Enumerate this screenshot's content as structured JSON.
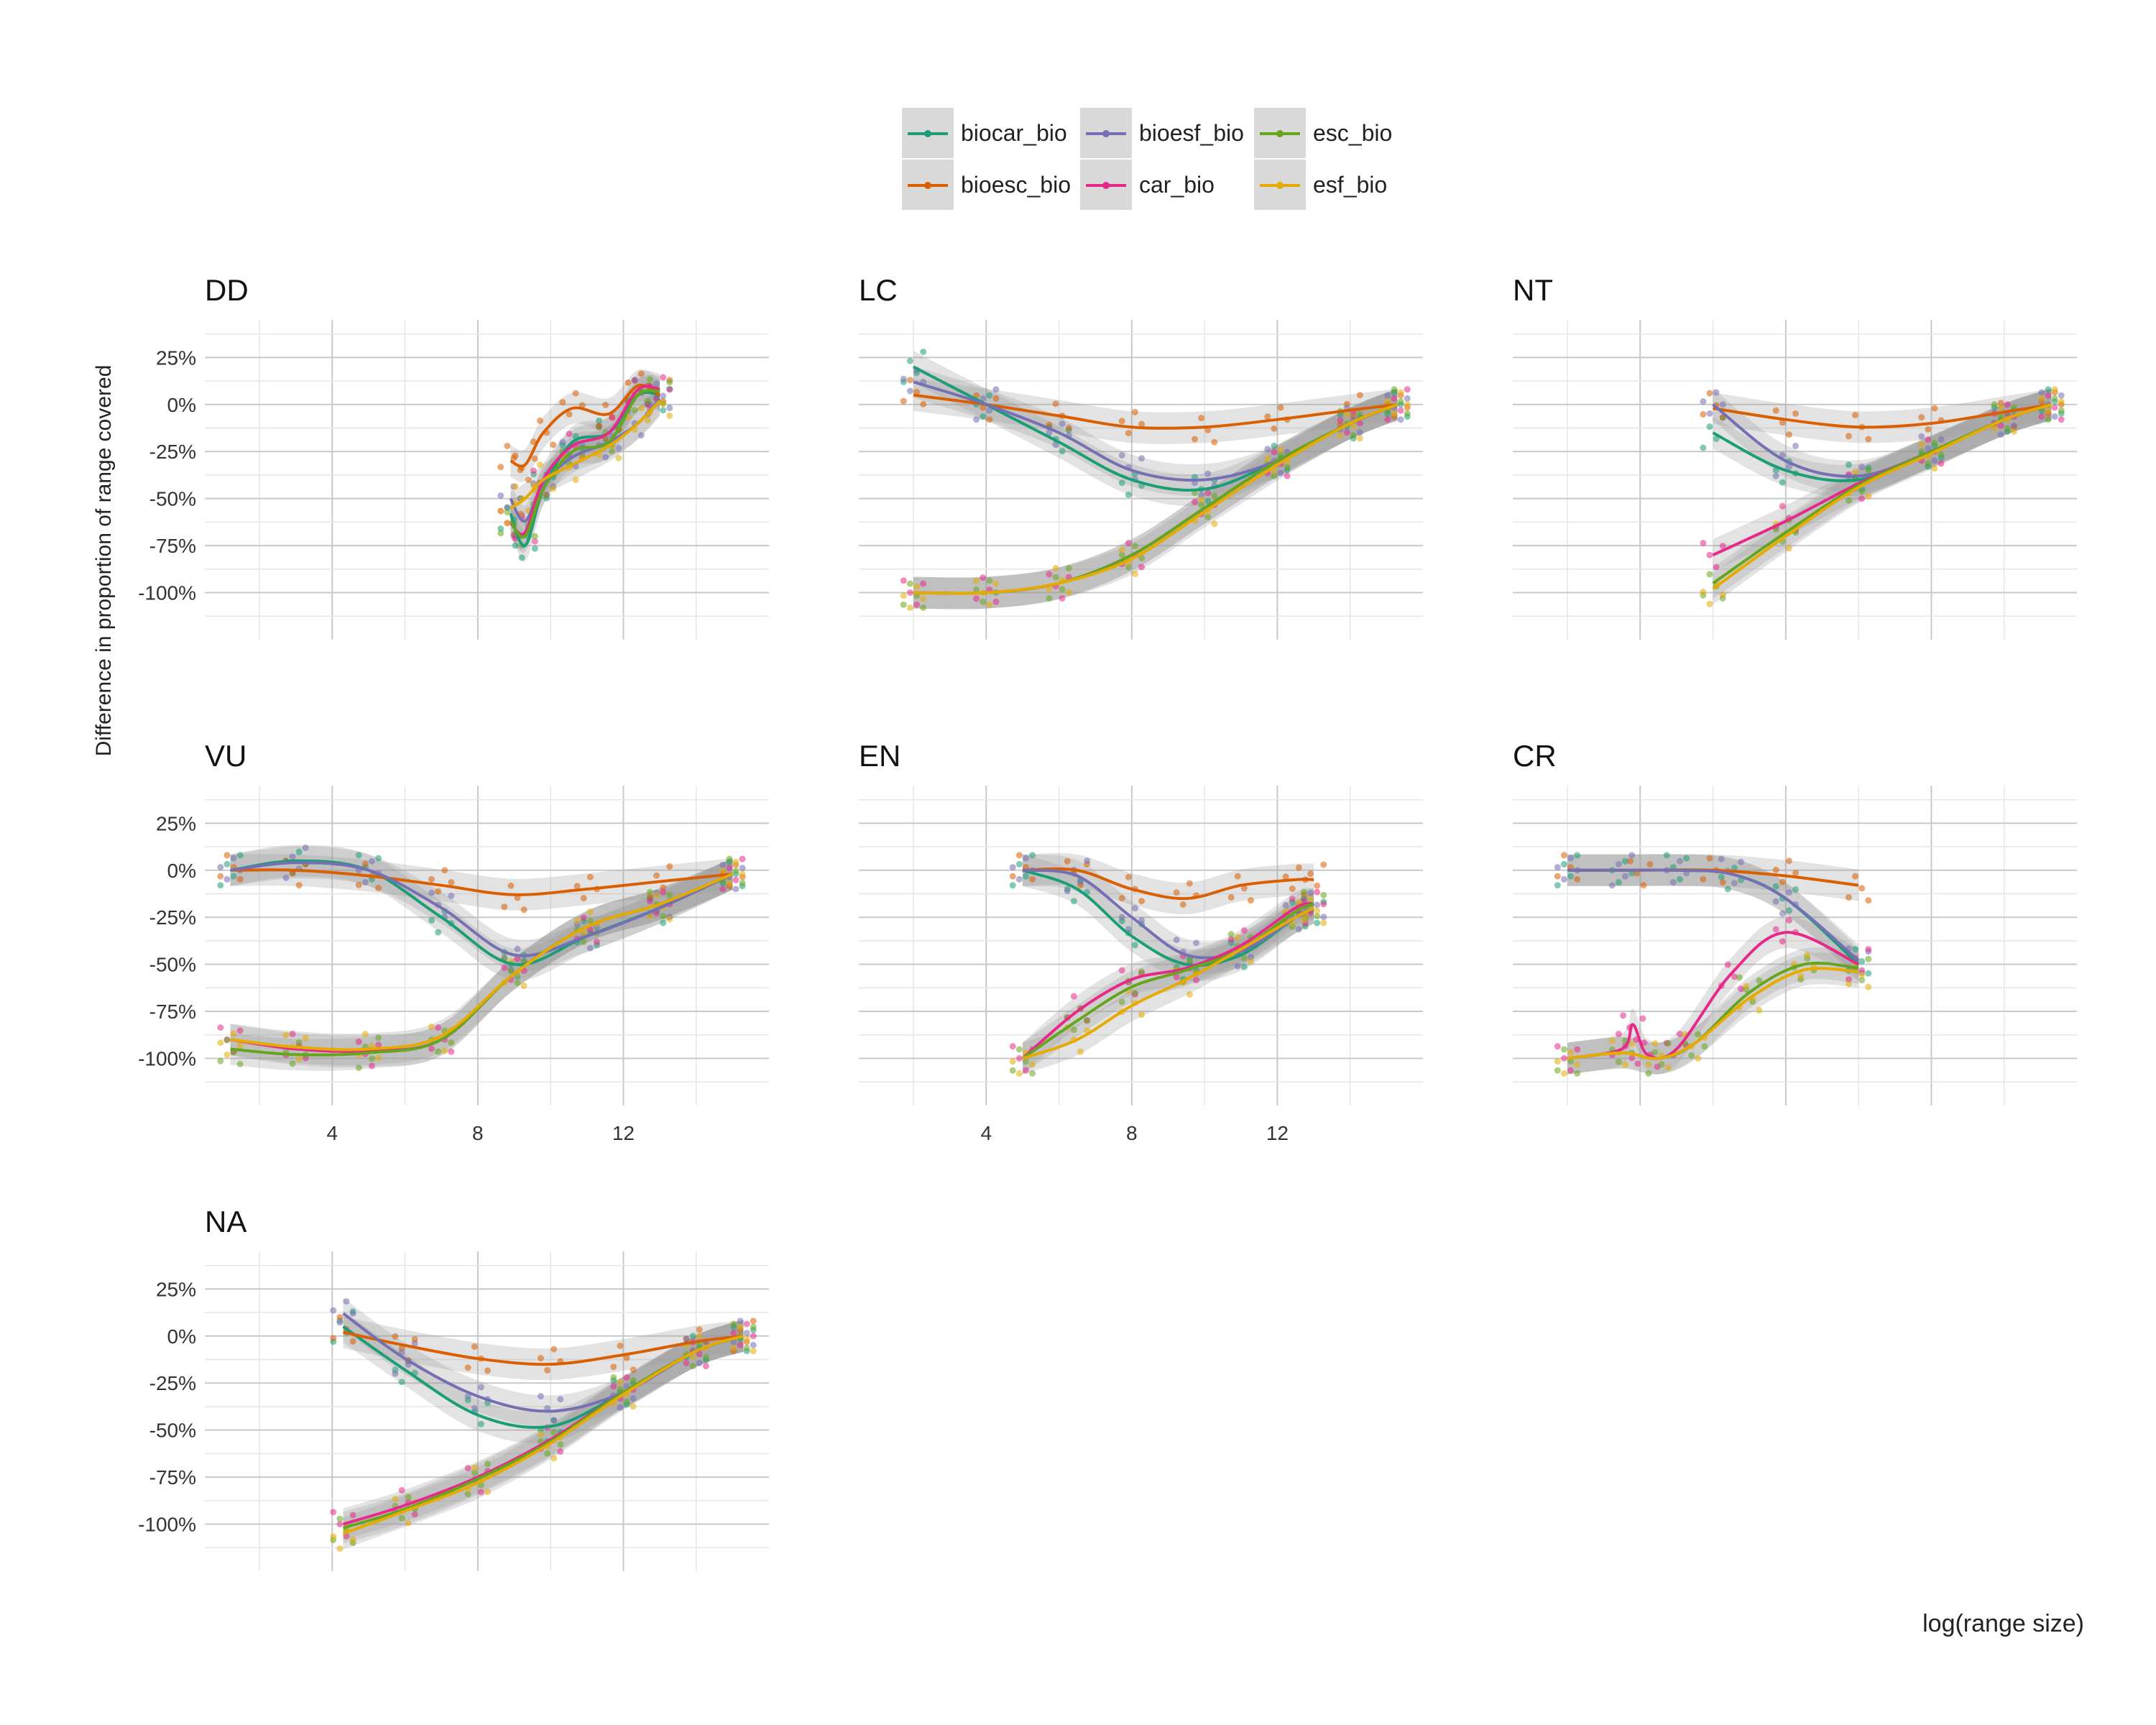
{
  "chart_data": {
    "type": "scatter",
    "xlabel": "log(range size)",
    "ylabel": "Difference in proportion of range covered",
    "y_ticks": [
      "25%",
      "0%",
      "-25%",
      "-50%",
      "-75%",
      "-100%"
    ],
    "y_tick_values": [
      25,
      0,
      -25,
      -50,
      -75,
      -100
    ],
    "x_ticks": [
      4,
      8,
      12
    ],
    "xlim": [
      0.5,
      16
    ],
    "ylim": [
      -125,
      45
    ],
    "grid": true,
    "legend_position": "top",
    "series_colors": {
      "biocar_bio": "#1b9e77",
      "bioesc_bio": "#d95f02",
      "bioesf_bio": "#7570b3",
      "car_bio": "#e7298a",
      "esc_bio": "#66a61e",
      "esf_bio": "#e6ab02"
    },
    "legend": [
      {
        "name": "biocar_bio",
        "color": "#1b9e77"
      },
      {
        "name": "bioesc_bio",
        "color": "#d95f02"
      },
      {
        "name": "bioesf_bio",
        "color": "#7570b3"
      },
      {
        "name": "car_bio",
        "color": "#e7298a"
      },
      {
        "name": "esc_bio",
        "color": "#66a61e"
      },
      {
        "name": "esf_bio",
        "color": "#e6ab02"
      }
    ],
    "facets": [
      {
        "title": "DD",
        "series": [
          {
            "name": "biocar_bio",
            "x": [
              8.9,
              9.3,
              9.8,
              10.6,
              11.6,
              12.4,
              13.0
            ],
            "y": [
              -58,
              -75,
              -45,
              -20,
              -15,
              5,
              5
            ]
          },
          {
            "name": "bioesc_bio",
            "x": [
              8.9,
              9.3,
              9.8,
              10.6,
              11.6,
              12.4,
              13.0
            ],
            "y": [
              -30,
              -32,
              -15,
              -2,
              -5,
              10,
              5
            ]
          },
          {
            "name": "bioesf_bio",
            "x": [
              8.9,
              9.3,
              9.8,
              10.6,
              11.6,
              12.4,
              13.0
            ],
            "y": [
              -50,
              -62,
              -42,
              -28,
              -20,
              -10,
              3
            ]
          },
          {
            "name": "car_bio",
            "x": [
              8.9,
              9.3,
              9.8,
              10.6,
              11.6,
              12.4,
              13.0
            ],
            "y": [
              -63,
              -68,
              -40,
              -22,
              -15,
              8,
              8
            ]
          },
          {
            "name": "esc_bio",
            "x": [
              8.9,
              9.3,
              9.8,
              10.6,
              11.6,
              12.4,
              13.0
            ],
            "y": [
              -62,
              -70,
              -45,
              -25,
              -20,
              5,
              7
            ]
          },
          {
            "name": "esf_bio",
            "x": [
              8.9,
              9.3,
              9.8,
              10.6,
              11.6,
              12.4,
              13.0
            ],
            "y": [
              -55,
              -50,
              -40,
              -32,
              -22,
              -10,
              2
            ]
          }
        ]
      },
      {
        "title": "LC",
        "series": [
          {
            "name": "biocar_bio",
            "x": [
              2.0,
              4.0,
              6.0,
              8.0,
              10.0,
              12.0,
              14.0,
              15.3
            ],
            "y": [
              20,
              0,
              -20,
              -40,
              -45,
              -30,
              -10,
              0
            ]
          },
          {
            "name": "bioesc_bio",
            "x": [
              2.0,
              4.0,
              6.0,
              8.0,
              10.0,
              12.0,
              14.0,
              15.3
            ],
            "y": [
              5,
              0,
              -6,
              -12,
              -12,
              -8,
              -3,
              0
            ]
          },
          {
            "name": "bioesf_bio",
            "x": [
              2.0,
              4.0,
              6.0,
              8.0,
              10.0,
              12.0,
              14.0,
              15.3
            ],
            "y": [
              12,
              0,
              -15,
              -35,
              -40,
              -30,
              -10,
              0
            ]
          },
          {
            "name": "car_bio",
            "x": [
              2.0,
              4.0,
              6.0,
              8.0,
              10.0,
              12.0,
              14.0,
              15.3
            ],
            "y": [
              -100,
              -100,
              -95,
              -80,
              -55,
              -30,
              -10,
              0
            ]
          },
          {
            "name": "esc_bio",
            "x": [
              2.0,
              4.0,
              6.0,
              8.0,
              10.0,
              12.0,
              14.0,
              15.3
            ],
            "y": [
              -100,
              -100,
              -95,
              -80,
              -55,
              -30,
              -10,
              0
            ]
          },
          {
            "name": "esf_bio",
            "x": [
              2.0,
              4.0,
              6.0,
              8.0,
              10.0,
              12.0,
              14.0,
              15.3
            ],
            "y": [
              -100,
              -100,
              -95,
              -82,
              -57,
              -32,
              -10,
              0
            ]
          }
        ]
      },
      {
        "title": "NT",
        "series": [
          {
            "name": "biocar_bio",
            "x": [
              6.0,
              8.0,
              10.0,
              12.0,
              14.0,
              15.3
            ],
            "y": [
              -15,
              -35,
              -40,
              -25,
              -8,
              0
            ]
          },
          {
            "name": "bioesc_bio",
            "x": [
              6.0,
              8.0,
              10.0,
              12.0,
              14.0,
              15.3
            ],
            "y": [
              -2,
              -8,
              -12,
              -10,
              -4,
              0
            ]
          },
          {
            "name": "bioesf_bio",
            "x": [
              6.0,
              8.0,
              10.0,
              12.0,
              14.0,
              15.3
            ],
            "y": [
              0,
              -30,
              -38,
              -25,
              -8,
              0
            ]
          },
          {
            "name": "car_bio",
            "x": [
              6.0,
              8.0,
              10.0,
              12.0,
              14.0,
              15.3
            ],
            "y": [
              -80,
              -62,
              -42,
              -25,
              -8,
              0
            ]
          },
          {
            "name": "esc_bio",
            "x": [
              6.0,
              8.0,
              10.0,
              12.0,
              14.0,
              15.3
            ],
            "y": [
              -95,
              -68,
              -43,
              -25,
              -8,
              0
            ]
          },
          {
            "name": "esf_bio",
            "x": [
              6.0,
              8.0,
              10.0,
              12.0,
              14.0,
              15.3
            ],
            "y": [
              -98,
              -70,
              -44,
              -26,
              -8,
              0
            ]
          }
        ]
      },
      {
        "title": "VU",
        "series": [
          {
            "name": "biocar_bio",
            "x": [
              1.2,
              3.0,
              5.0,
              7.0,
              9.0,
              11.0,
              13.0,
              15.0
            ],
            "y": [
              0,
              5,
              0,
              -25,
              -50,
              -35,
              -20,
              -2
            ]
          },
          {
            "name": "bioesc_bio",
            "x": [
              1.2,
              3.0,
              5.0,
              7.0,
              9.0,
              11.0,
              13.0,
              15.0
            ],
            "y": [
              0,
              0,
              -3,
              -8,
              -13,
              -10,
              -6,
              -2
            ]
          },
          {
            "name": "bioesf_bio",
            "x": [
              1.2,
              3.0,
              5.0,
              7.0,
              9.0,
              11.0,
              13.0,
              15.0
            ],
            "y": [
              0,
              4,
              0,
              -20,
              -45,
              -35,
              -20,
              -2
            ]
          },
          {
            "name": "car_bio",
            "x": [
              1.2,
              3.0,
              5.0,
              7.0,
              9.0,
              11.0,
              13.0,
              15.0
            ],
            "y": [
              -90,
              -95,
              -96,
              -90,
              -55,
              -30,
              -18,
              -2
            ]
          },
          {
            "name": "esc_bio",
            "x": [
              1.2,
              3.0,
              5.0,
              7.0,
              9.0,
              11.0,
              13.0,
              15.0
            ],
            "y": [
              -95,
              -98,
              -97,
              -90,
              -55,
              -30,
              -18,
              -2
            ]
          },
          {
            "name": "esf_bio",
            "x": [
              1.2,
              3.0,
              5.0,
              7.0,
              9.0,
              11.0,
              13.0,
              15.0
            ],
            "y": [
              -90,
              -94,
              -95,
              -88,
              -55,
              -30,
              -18,
              -2
            ]
          }
        ]
      },
      {
        "title": "EN",
        "series": [
          {
            "name": "biocar_bio",
            "x": [
              5.0,
              6.5,
              8.0,
              9.5,
              11.0,
              12.5,
              13.0
            ],
            "y": [
              0,
              -10,
              -35,
              -50,
              -45,
              -25,
              -20
            ]
          },
          {
            "name": "bioesc_bio",
            "x": [
              5.0,
              6.5,
              8.0,
              9.5,
              11.0,
              12.5,
              13.0
            ],
            "y": [
              0,
              0,
              -10,
              -15,
              -8,
              -5,
              -5
            ]
          },
          {
            "name": "bioesf_bio",
            "x": [
              5.0,
              6.5,
              8.0,
              9.5,
              11.0,
              12.5,
              13.0
            ],
            "y": [
              0,
              -3,
              -25,
              -45,
              -43,
              -25,
              -20
            ]
          },
          {
            "name": "car_bio",
            "x": [
              5.0,
              6.5,
              8.0,
              9.5,
              11.0,
              12.5,
              13.0
            ],
            "y": [
              -100,
              -75,
              -58,
              -52,
              -40,
              -20,
              -18
            ]
          },
          {
            "name": "esc_bio",
            "x": [
              5.0,
              6.5,
              8.0,
              9.5,
              11.0,
              12.5,
              13.0
            ],
            "y": [
              -100,
              -80,
              -62,
              -53,
              -42,
              -22,
              -18
            ]
          },
          {
            "name": "esf_bio",
            "x": [
              5.0,
              6.5,
              8.0,
              9.5,
              11.0,
              12.5,
              13.0
            ],
            "y": [
              -100,
              -90,
              -72,
              -58,
              -42,
              -25,
              -20
            ]
          }
        ]
      },
      {
        "title": "CR",
        "series": [
          {
            "name": "biocar_bio",
            "x": [
              2.0,
              3.5,
              5.0,
              6.5,
              8.0,
              10.0
            ],
            "y": [
              0,
              0,
              0,
              -2,
              -15,
              -50
            ]
          },
          {
            "name": "bioesc_bio",
            "x": [
              2.0,
              4.0,
              6.0,
              8.0,
              10.0
            ],
            "y": [
              0,
              0,
              0,
              -3,
              -8
            ]
          },
          {
            "name": "bioesf_bio",
            "x": [
              2.0,
              3.5,
              5.0,
              6.5,
              8.0,
              10.0
            ],
            "y": [
              0,
              0,
              0,
              -2,
              -15,
              -48
            ]
          },
          {
            "name": "car_bio",
            "x": [
              2.0,
              3.5,
              3.8,
              4.2,
              5.0,
              6.5,
              8.0,
              10.0
            ],
            "y": [
              -100,
              -95,
              -82,
              -98,
              -95,
              -55,
              -33,
              -50
            ]
          },
          {
            "name": "esc_bio",
            "x": [
              2.0,
              3.5,
              4.5,
              5.5,
              7.0,
              8.5,
              10.0
            ],
            "y": [
              -100,
              -97,
              -100,
              -92,
              -65,
              -50,
              -52
            ]
          },
          {
            "name": "esf_bio",
            "x": [
              2.0,
              3.5,
              4.5,
              5.5,
              7.0,
              8.5,
              10.0
            ],
            "y": [
              -100,
              -97,
              -100,
              -92,
              -68,
              -53,
              -54
            ]
          }
        ]
      },
      {
        "title": "NA",
        "series": [
          {
            "name": "biocar_bio",
            "x": [
              4.3,
              6.0,
              8.0,
              10.0,
              12.0,
              14.0,
              15.3
            ],
            "y": [
              5,
              -18,
              -42,
              -48,
              -30,
              -8,
              0
            ]
          },
          {
            "name": "bioesc_bio",
            "x": [
              4.3,
              6.0,
              8.0,
              10.0,
              12.0,
              14.0,
              15.3
            ],
            "y": [
              2,
              -5,
              -12,
              -15,
              -10,
              -3,
              0
            ]
          },
          {
            "name": "bioesf_bio",
            "x": [
              4.3,
              6.0,
              8.0,
              10.0,
              12.0,
              14.0,
              15.3
            ],
            "y": [
              12,
              -12,
              -32,
              -40,
              -30,
              -8,
              0
            ]
          },
          {
            "name": "car_bio",
            "x": [
              4.3,
              6.0,
              8.0,
              10.0,
              12.0,
              14.0,
              15.3
            ],
            "y": [
              -100,
              -90,
              -75,
              -55,
              -30,
              -8,
              0
            ]
          },
          {
            "name": "esc_bio",
            "x": [
              4.3,
              6.0,
              8.0,
              10.0,
              12.0,
              14.0,
              15.3
            ],
            "y": [
              -102,
              -92,
              -76,
              -56,
              -30,
              -8,
              0
            ]
          },
          {
            "name": "esf_bio",
            "x": [
              4.3,
              6.0,
              8.0,
              10.0,
              12.0,
              14.0,
              15.3
            ],
            "y": [
              -105,
              -93,
              -78,
              -57,
              -31,
              -8,
              0
            ]
          }
        ]
      }
    ]
  }
}
